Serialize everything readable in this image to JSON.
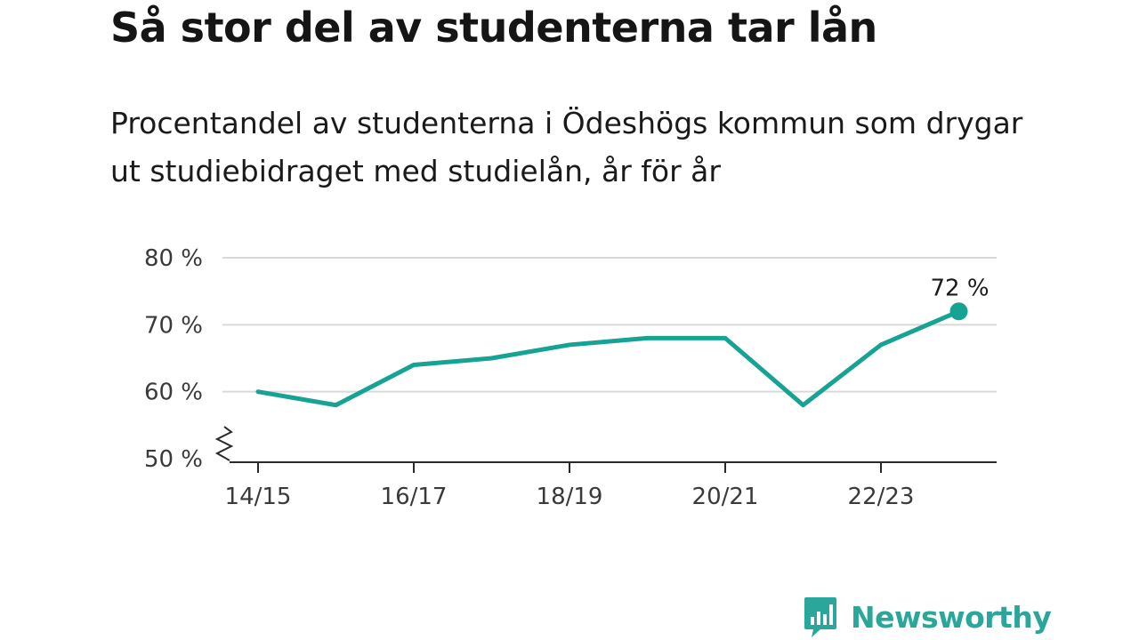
{
  "title": "Så stor del av studenterna tar lån",
  "subtitle": "Procentandel av studenterna i Ödeshögs kommun som drygar ut studiebidraget med studielån, år för år",
  "brand": {
    "name": "Newsworthy",
    "color": "#2aa79a",
    "icon": "bar-chart-icon"
  },
  "chart_data": {
    "type": "line",
    "title": "Så stor del av studenterna tar lån",
    "subtitle": "Procentandel av studenterna i Ödeshögs kommun som drygar ut studiebidraget med studielån, år för år",
    "x": [
      "14/15",
      "15/16",
      "16/17",
      "17/18",
      "18/19",
      "19/20",
      "20/21",
      "21/22",
      "22/23",
      "23/24"
    ],
    "x_tick_labels": [
      "14/15",
      "16/17",
      "18/19",
      "20/21",
      "22/23"
    ],
    "series": [
      {
        "values": [
          60,
          58,
          64,
          65,
          67,
          68,
          68,
          58,
          67,
          72
        ],
        "color": "#16a394"
      }
    ],
    "ylim": [
      50,
      80
    ],
    "y_ticks": [
      50,
      60,
      70,
      80
    ],
    "y_tick_labels": [
      "50 %",
      "60 %",
      "70 %",
      "80 %"
    ],
    "y_axis_break": true,
    "grid": true,
    "annotations": [
      {
        "x": "23/24",
        "y": 72,
        "text": "72 %"
      }
    ],
    "xlabel": "",
    "ylabel": ""
  }
}
